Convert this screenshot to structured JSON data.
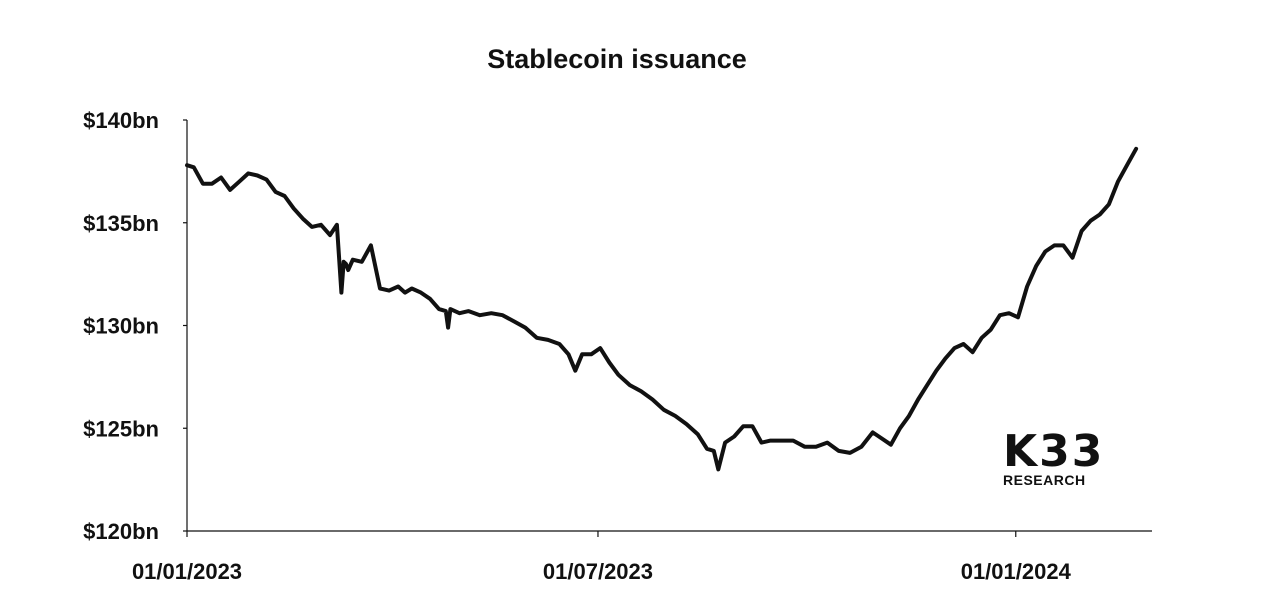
{
  "chart_data": {
    "type": "line",
    "title": "Stablecoin issuance",
    "xlabel": "",
    "ylabel": "",
    "ylim": [
      120,
      140
    ],
    "xlim": [
      "2023-01-01",
      "2024-03-01"
    ],
    "yticks": [
      {
        "value": 140,
        "label": "$140bn"
      },
      {
        "value": 135,
        "label": "$135bn"
      },
      {
        "value": 130,
        "label": "$130bn"
      },
      {
        "value": 125,
        "label": "$125bn"
      },
      {
        "value": 120,
        "label": "$120bn"
      }
    ],
    "xticks": [
      {
        "date": "2023-01-01",
        "label": "01/01/2023"
      },
      {
        "date": "2023-07-01",
        "label": "01/07/2023"
      },
      {
        "date": "2024-01-01",
        "label": "01/01/2024"
      }
    ],
    "grid": false,
    "legend": "none",
    "line_color": "#111111",
    "series": [
      {
        "x": [
          "2023-01-01",
          "2023-01-04",
          "2023-01-08",
          "2023-01-12",
          "2023-01-16",
          "2023-01-20",
          "2023-01-24",
          "2023-01-28",
          "2023-02-01",
          "2023-02-05",
          "2023-02-09",
          "2023-02-13",
          "2023-02-17",
          "2023-02-21",
          "2023-02-25",
          "2023-03-01",
          "2023-03-05",
          "2023-03-08",
          "2023-03-10",
          "2023-03-11",
          "2023-03-12",
          "2023-03-13",
          "2023-03-15",
          "2023-03-19",
          "2023-03-23",
          "2023-03-27",
          "2023-03-31",
          "2023-04-04",
          "2023-04-07",
          "2023-04-10",
          "2023-04-14",
          "2023-04-18",
          "2023-04-22",
          "2023-04-25",
          "2023-04-26",
          "2023-04-27",
          "2023-05-01",
          "2023-05-05",
          "2023-05-10",
          "2023-05-15",
          "2023-05-20",
          "2023-05-25",
          "2023-05-30",
          "2023-06-04",
          "2023-06-09",
          "2023-06-14",
          "2023-06-18",
          "2023-06-21",
          "2023-06-24",
          "2023-06-28",
          "2023-07-02",
          "2023-07-06",
          "2023-07-10",
          "2023-07-15",
          "2023-07-20",
          "2023-07-25",
          "2023-07-30",
          "2023-08-04",
          "2023-08-09",
          "2023-08-14",
          "2023-08-18",
          "2023-08-21",
          "2023-08-23",
          "2023-08-26",
          "2023-08-30",
          "2023-09-03",
          "2023-09-07",
          "2023-09-11",
          "2023-09-15",
          "2023-09-20",
          "2023-09-25",
          "2023-09-30",
          "2023-10-05",
          "2023-10-10",
          "2023-10-15",
          "2023-10-20",
          "2023-10-25",
          "2023-10-30",
          "2023-11-03",
          "2023-11-07",
          "2023-11-11",
          "2023-11-15",
          "2023-11-19",
          "2023-11-23",
          "2023-11-27",
          "2023-12-01",
          "2023-12-05",
          "2023-12-09",
          "2023-12-13",
          "2023-12-17",
          "2023-12-21",
          "2023-12-25",
          "2023-12-29",
          "2024-01-02",
          "2024-01-06",
          "2024-01-10",
          "2024-01-14",
          "2024-01-18",
          "2024-01-22",
          "2024-01-26",
          "2024-01-30",
          "2024-02-03",
          "2024-02-07",
          "2024-02-11",
          "2024-02-15",
          "2024-02-19",
          "2024-02-23"
        ],
        "values": [
          137.8,
          137.7,
          136.9,
          136.9,
          137.2,
          136.6,
          137.0,
          137.4,
          137.3,
          137.1,
          136.5,
          136.3,
          135.7,
          135.2,
          134.8,
          134.9,
          134.4,
          134.9,
          131.6,
          133.1,
          133.0,
          132.7,
          133.2,
          133.1,
          133.9,
          131.8,
          131.7,
          131.9,
          131.6,
          131.8,
          131.6,
          131.3,
          130.8,
          130.7,
          129.9,
          130.8,
          130.6,
          130.7,
          130.5,
          130.6,
          130.5,
          130.2,
          129.9,
          129.4,
          129.3,
          129.1,
          128.6,
          127.8,
          128.6,
          128.6,
          128.9,
          128.2,
          127.6,
          127.1,
          126.8,
          126.4,
          125.9,
          125.6,
          125.2,
          124.7,
          124.0,
          123.9,
          123.0,
          124.3,
          124.6,
          125.1,
          125.1,
          124.3,
          124.4,
          124.4,
          124.4,
          124.1,
          124.1,
          124.3,
          123.9,
          123.8,
          124.1,
          124.8,
          124.5,
          124.2,
          125.0,
          125.6,
          126.4,
          127.1,
          127.8,
          128.4,
          128.9,
          129.1,
          128.7,
          129.4,
          129.8,
          130.5,
          130.6,
          130.4,
          131.9,
          132.9,
          133.6,
          133.9,
          133.9,
          133.3,
          134.6,
          135.1,
          135.4,
          135.9,
          137.0,
          137.8,
          138.6
        ]
      }
    ]
  },
  "logo": {
    "mark": "K33",
    "sub": "RESEARCH"
  }
}
